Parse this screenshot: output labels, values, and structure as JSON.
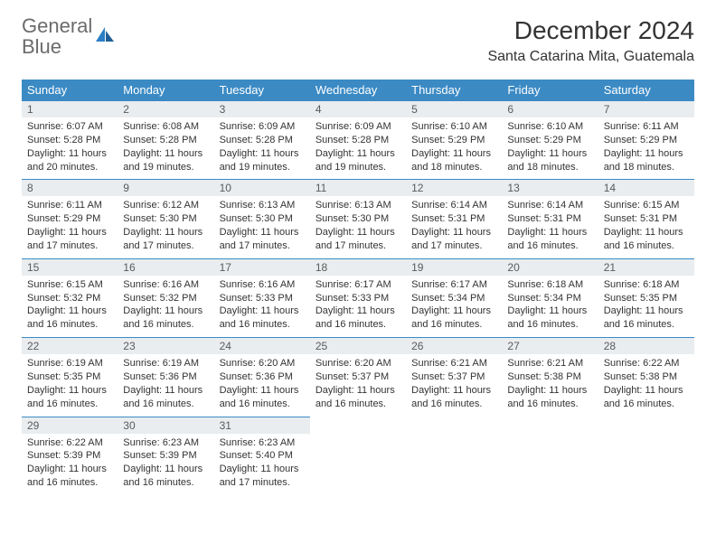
{
  "brand": {
    "part1": "General",
    "part2": "Blue"
  },
  "title": "December 2024",
  "location": "Santa Catarina Mita, Guatemala",
  "colors": {
    "header_bg": "#3b8ac4",
    "header_text": "#ffffff",
    "daynum_bg": "#e9edef",
    "row_border": "#3b8ac4",
    "body_text": "#333333",
    "brand_gray": "#6b6b6b",
    "brand_blue": "#2b7dc4",
    "page_bg": "#ffffff"
  },
  "weekdays": [
    "Sunday",
    "Monday",
    "Tuesday",
    "Wednesday",
    "Thursday",
    "Friday",
    "Saturday"
  ],
  "weeks": [
    [
      {
        "day": "1",
        "sunrise": "Sunrise: 6:07 AM",
        "sunset": "Sunset: 5:28 PM",
        "daylight": "Daylight: 11 hours and 20 minutes."
      },
      {
        "day": "2",
        "sunrise": "Sunrise: 6:08 AM",
        "sunset": "Sunset: 5:28 PM",
        "daylight": "Daylight: 11 hours and 19 minutes."
      },
      {
        "day": "3",
        "sunrise": "Sunrise: 6:09 AM",
        "sunset": "Sunset: 5:28 PM",
        "daylight": "Daylight: 11 hours and 19 minutes."
      },
      {
        "day": "4",
        "sunrise": "Sunrise: 6:09 AM",
        "sunset": "Sunset: 5:28 PM",
        "daylight": "Daylight: 11 hours and 19 minutes."
      },
      {
        "day": "5",
        "sunrise": "Sunrise: 6:10 AM",
        "sunset": "Sunset: 5:29 PM",
        "daylight": "Daylight: 11 hours and 18 minutes."
      },
      {
        "day": "6",
        "sunrise": "Sunrise: 6:10 AM",
        "sunset": "Sunset: 5:29 PM",
        "daylight": "Daylight: 11 hours and 18 minutes."
      },
      {
        "day": "7",
        "sunrise": "Sunrise: 6:11 AM",
        "sunset": "Sunset: 5:29 PM",
        "daylight": "Daylight: 11 hours and 18 minutes."
      }
    ],
    [
      {
        "day": "8",
        "sunrise": "Sunrise: 6:11 AM",
        "sunset": "Sunset: 5:29 PM",
        "daylight": "Daylight: 11 hours and 17 minutes."
      },
      {
        "day": "9",
        "sunrise": "Sunrise: 6:12 AM",
        "sunset": "Sunset: 5:30 PM",
        "daylight": "Daylight: 11 hours and 17 minutes."
      },
      {
        "day": "10",
        "sunrise": "Sunrise: 6:13 AM",
        "sunset": "Sunset: 5:30 PM",
        "daylight": "Daylight: 11 hours and 17 minutes."
      },
      {
        "day": "11",
        "sunrise": "Sunrise: 6:13 AM",
        "sunset": "Sunset: 5:30 PM",
        "daylight": "Daylight: 11 hours and 17 minutes."
      },
      {
        "day": "12",
        "sunrise": "Sunrise: 6:14 AM",
        "sunset": "Sunset: 5:31 PM",
        "daylight": "Daylight: 11 hours and 17 minutes."
      },
      {
        "day": "13",
        "sunrise": "Sunrise: 6:14 AM",
        "sunset": "Sunset: 5:31 PM",
        "daylight": "Daylight: 11 hours and 16 minutes."
      },
      {
        "day": "14",
        "sunrise": "Sunrise: 6:15 AM",
        "sunset": "Sunset: 5:31 PM",
        "daylight": "Daylight: 11 hours and 16 minutes."
      }
    ],
    [
      {
        "day": "15",
        "sunrise": "Sunrise: 6:15 AM",
        "sunset": "Sunset: 5:32 PM",
        "daylight": "Daylight: 11 hours and 16 minutes."
      },
      {
        "day": "16",
        "sunrise": "Sunrise: 6:16 AM",
        "sunset": "Sunset: 5:32 PM",
        "daylight": "Daylight: 11 hours and 16 minutes."
      },
      {
        "day": "17",
        "sunrise": "Sunrise: 6:16 AM",
        "sunset": "Sunset: 5:33 PM",
        "daylight": "Daylight: 11 hours and 16 minutes."
      },
      {
        "day": "18",
        "sunrise": "Sunrise: 6:17 AM",
        "sunset": "Sunset: 5:33 PM",
        "daylight": "Daylight: 11 hours and 16 minutes."
      },
      {
        "day": "19",
        "sunrise": "Sunrise: 6:17 AM",
        "sunset": "Sunset: 5:34 PM",
        "daylight": "Daylight: 11 hours and 16 minutes."
      },
      {
        "day": "20",
        "sunrise": "Sunrise: 6:18 AM",
        "sunset": "Sunset: 5:34 PM",
        "daylight": "Daylight: 11 hours and 16 minutes."
      },
      {
        "day": "21",
        "sunrise": "Sunrise: 6:18 AM",
        "sunset": "Sunset: 5:35 PM",
        "daylight": "Daylight: 11 hours and 16 minutes."
      }
    ],
    [
      {
        "day": "22",
        "sunrise": "Sunrise: 6:19 AM",
        "sunset": "Sunset: 5:35 PM",
        "daylight": "Daylight: 11 hours and 16 minutes."
      },
      {
        "day": "23",
        "sunrise": "Sunrise: 6:19 AM",
        "sunset": "Sunset: 5:36 PM",
        "daylight": "Daylight: 11 hours and 16 minutes."
      },
      {
        "day": "24",
        "sunrise": "Sunrise: 6:20 AM",
        "sunset": "Sunset: 5:36 PM",
        "daylight": "Daylight: 11 hours and 16 minutes."
      },
      {
        "day": "25",
        "sunrise": "Sunrise: 6:20 AM",
        "sunset": "Sunset: 5:37 PM",
        "daylight": "Daylight: 11 hours and 16 minutes."
      },
      {
        "day": "26",
        "sunrise": "Sunrise: 6:21 AM",
        "sunset": "Sunset: 5:37 PM",
        "daylight": "Daylight: 11 hours and 16 minutes."
      },
      {
        "day": "27",
        "sunrise": "Sunrise: 6:21 AM",
        "sunset": "Sunset: 5:38 PM",
        "daylight": "Daylight: 11 hours and 16 minutes."
      },
      {
        "day": "28",
        "sunrise": "Sunrise: 6:22 AM",
        "sunset": "Sunset: 5:38 PM",
        "daylight": "Daylight: 11 hours and 16 minutes."
      }
    ],
    [
      {
        "day": "29",
        "sunrise": "Sunrise: 6:22 AM",
        "sunset": "Sunset: 5:39 PM",
        "daylight": "Daylight: 11 hours and 16 minutes."
      },
      {
        "day": "30",
        "sunrise": "Sunrise: 6:23 AM",
        "sunset": "Sunset: 5:39 PM",
        "daylight": "Daylight: 11 hours and 16 minutes."
      },
      {
        "day": "31",
        "sunrise": "Sunrise: 6:23 AM",
        "sunset": "Sunset: 5:40 PM",
        "daylight": "Daylight: 11 hours and 17 minutes."
      },
      null,
      null,
      null,
      null
    ]
  ]
}
